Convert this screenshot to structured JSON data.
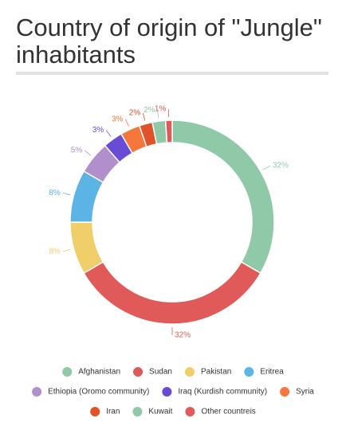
{
  "chart_data": {
    "type": "pie",
    "donut": true,
    "title": "Country of origin of \"Jungle\" inhabitants",
    "categories": [
      "Afghanistan",
      "Sudan",
      "Pakistan",
      "Eritrea",
      "Ethiopia (Oromo community)",
      "Iraq (Kurdish community)",
      "Syria",
      "Iran",
      "Kuwait",
      "Other countreis"
    ],
    "values": [
      32,
      32,
      8,
      8,
      5,
      3,
      3,
      2,
      2,
      1
    ],
    "value_labels": [
      "32%",
      "32%",
      "8%",
      "8%",
      "5%",
      "3%",
      "3%",
      "2%",
      "2%",
      "1%"
    ],
    "colors": [
      "#8fc9a8",
      "#e05a5a",
      "#f0cf6a",
      "#5bb4e5",
      "#b08fcc",
      "#6a4bd6",
      "#f5773c",
      "#e0522a",
      "#8fc9a8",
      "#e05a5a"
    ]
  }
}
